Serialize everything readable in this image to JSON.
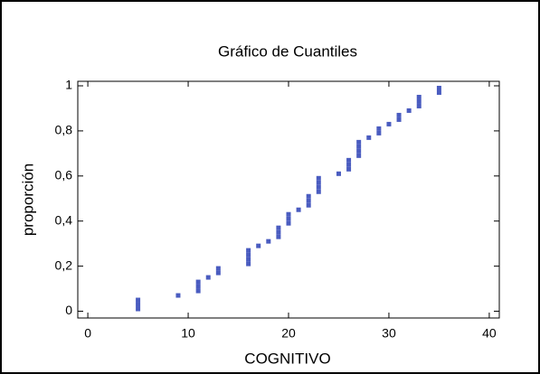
{
  "chart_data": {
    "type": "scatter",
    "title": "Gráfico de Cuantiles",
    "xlabel": "COGNITIVO",
    "ylabel": "proporción",
    "xlim": [
      -1,
      41
    ],
    "ylim": [
      -0.03,
      1.02
    ],
    "xticks": [
      0,
      10,
      20,
      30,
      40
    ],
    "yticks": [
      0,
      {
        "value": 0.2,
        "label": "0,2"
      },
      {
        "value": 0.4,
        "label": "0,4"
      },
      {
        "value": 0.6,
        "label": "0,6"
      },
      {
        "value": 0.8,
        "label": "0,8"
      },
      1
    ],
    "color": "#4a5cc0",
    "x": [
      5,
      5,
      5,
      9,
      11,
      11,
      11,
      12,
      13,
      13,
      16,
      16,
      16,
      16,
      17,
      18,
      19,
      19,
      19,
      20,
      20,
      20,
      21,
      22,
      22,
      22,
      23,
      23,
      23,
      23,
      25,
      26,
      26,
      26,
      27,
      27,
      27,
      27,
      28,
      29,
      29,
      30,
      31,
      31,
      32,
      33,
      33,
      33,
      35,
      35
    ],
    "values": [
      0.01,
      0.03,
      0.05,
      0.07,
      0.09,
      0.11,
      0.13,
      0.15,
      0.17,
      0.19,
      0.21,
      0.23,
      0.25,
      0.27,
      0.29,
      0.31,
      0.33,
      0.35,
      0.37,
      0.39,
      0.41,
      0.43,
      0.45,
      0.47,
      0.49,
      0.51,
      0.53,
      0.55,
      0.57,
      0.59,
      0.61,
      0.63,
      0.65,
      0.67,
      0.69,
      0.71,
      0.73,
      0.75,
      0.77,
      0.79,
      0.81,
      0.83,
      0.85,
      0.87,
      0.89,
      0.91,
      0.93,
      0.95,
      0.97,
      0.99
    ]
  }
}
